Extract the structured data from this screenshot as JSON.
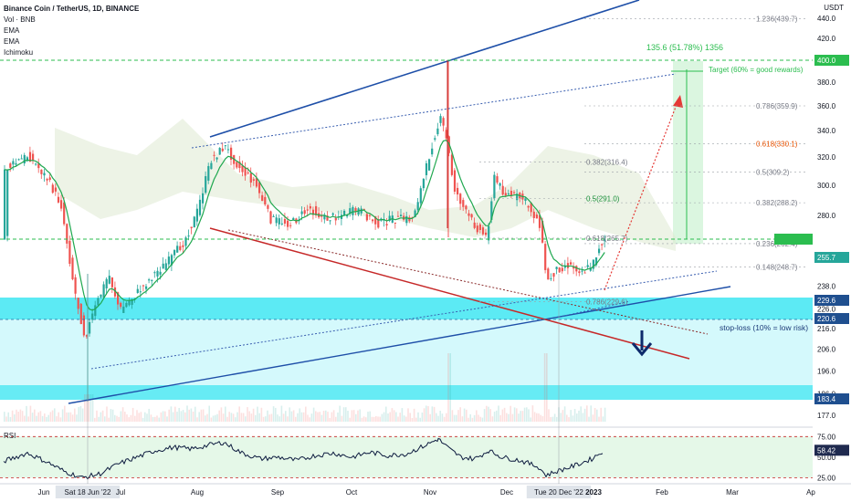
{
  "header": {
    "symbol_line": "Binance Coin / TetherUS, 1D, BINANCE",
    "indicators": [
      "Vol · BNB",
      "EMA",
      "EMA",
      "Ichimoku"
    ],
    "currency": "USDT"
  },
  "colors": {
    "bull": "#26a69a",
    "bear": "#ef5350",
    "ema": "#1fa84f",
    "cloud": "#dfe9d2",
    "channel": "#1e4fa8",
    "support": "#c62828",
    "zone": "#26e3f0",
    "target_box": "#d7f5dd"
  },
  "chart_data": [
    {
      "type": "line",
      "title": "",
      "series": [],
      "y_axis": {
        "ticks": [
          177.0,
          186.0,
          196.0,
          206.0,
          216.0,
          226.0,
          238.0,
          255.0,
          280.0,
          300.0,
          320.0,
          340.0,
          360.0,
          380.0,
          400.0,
          420.0,
          440.0
        ],
        "scale": "log",
        "ylim": [
          172,
          456
        ]
      },
      "x_axis": {
        "ticks": [
          "Jun",
          "Sat 18 Jun '22",
          "Jul",
          "Aug",
          "Sep",
          "Oct",
          "Nov",
          "Dec",
          "Tue 20 Dec '22",
          "2023",
          "Feb",
          "Mar",
          "Ap"
        ]
      },
      "price_tags": [
        {
          "value": "400.0",
          "kind": "target"
        },
        {
          "value": "255.7",
          "kind": "last"
        },
        {
          "value": "229.6",
          "kind": "zone"
        },
        {
          "value": "220.6",
          "kind": "zone"
        },
        {
          "value": "183.4",
          "kind": "zone"
        }
      ],
      "fib_levels": [
        {
          "label": "1.236(439.7)",
          "value": 439.7
        },
        {
          "label": "0.786(359.9)",
          "value": 359.9
        },
        {
          "label": "0.618(330.1)",
          "value": 330.1
        },
        {
          "label": "0.5(309.2)",
          "value": 309.2
        },
        {
          "label": "0.382(288.2)",
          "value": 288.2
        },
        {
          "label": "0.236(262.4)",
          "value": 262.4
        },
        {
          "label": "0.148(248.7)",
          "value": 248.7
        }
      ],
      "fib_levels_inner": [
        {
          "label": "0.382(316.4)",
          "value": 316.4
        },
        {
          "label": "0.5(291.0)",
          "value": 291.0
        },
        {
          "label": "0.618(265.7)",
          "value": 265.7
        },
        {
          "label": "0.786(229.6)",
          "value": 229.6
        }
      ],
      "annotations": {
        "target_measure": "135.6 (51.78%) 1356",
        "target_label": "Target (60% = good rewards)",
        "stop_label": "stop-loss (10% = low risk)"
      }
    },
    {
      "type": "line",
      "title": "RSI",
      "series": [],
      "y_axis": {
        "ticks": [
          25.0,
          50.0,
          75.0
        ],
        "ylim": [
          20,
          82
        ]
      },
      "last_value": "58.42",
      "bands": [
        25.0,
        75.0
      ]
    }
  ]
}
